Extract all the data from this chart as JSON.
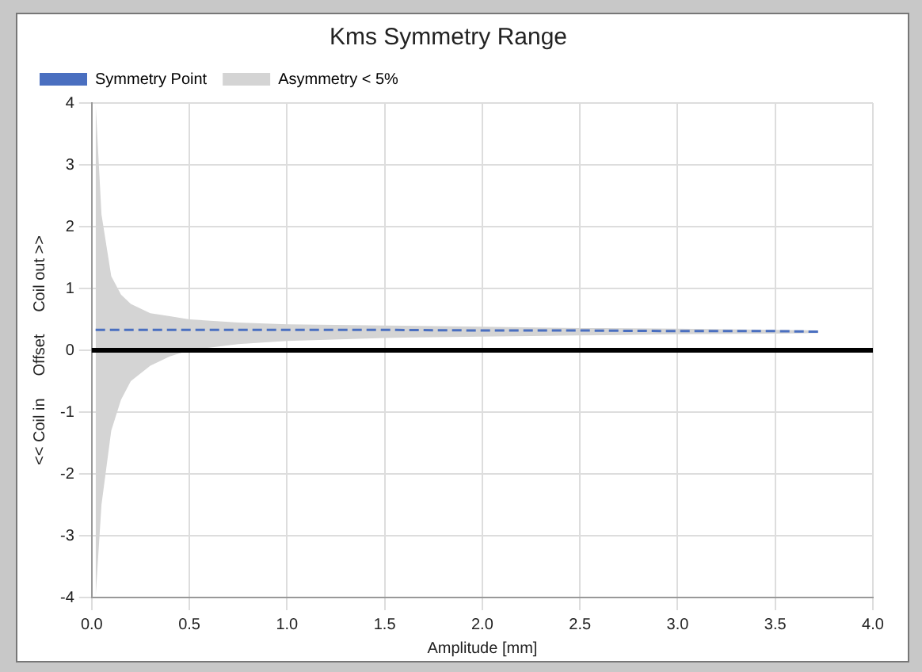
{
  "chart_data": {
    "type": "line",
    "title": "Kms Symmetry Range",
    "xlabel": "Amplitude [mm]",
    "ylabel": "<< Coil in     Offset     Coil out >>",
    "x": [
      0.02,
      0.05,
      0.1,
      0.15,
      0.2,
      0.3,
      0.4,
      0.5,
      0.75,
      1.0,
      1.5,
      2.0,
      2.5,
      3.0,
      3.5,
      3.72
    ],
    "series": [
      {
        "name": "Symmetry Point",
        "type": "line",
        "color": "#4a6fc0",
        "line_style": "dashed",
        "values": [
          0.33,
          0.33,
          0.33,
          0.33,
          0.33,
          0.33,
          0.33,
          0.33,
          0.33,
          0.33,
          0.33,
          0.32,
          0.32,
          0.31,
          0.31,
          0.3
        ]
      },
      {
        "name": "Asymmetry < 5%",
        "type": "area",
        "color": "#d4d4d4",
        "values": [
          null,
          null,
          null,
          null,
          null,
          null,
          null,
          null,
          null,
          null,
          null,
          null,
          null,
          null,
          null,
          null
        ],
        "upper": [
          4,
          2.2,
          1.2,
          0.9,
          0.75,
          0.6,
          0.55,
          0.5,
          0.45,
          0.42,
          0.4,
          0.38,
          0.36,
          0.35,
          0.33,
          0.32
        ],
        "lower": [
          -4,
          -2.5,
          -1.3,
          -0.8,
          -0.5,
          -0.25,
          -0.1,
          0.0,
          0.1,
          0.15,
          0.2,
          0.22,
          0.24,
          0.26,
          0.27,
          0.28
        ]
      }
    ],
    "xlim": [
      0,
      4
    ],
    "xticks": [
      {
        "value": 0,
        "label": "0.0"
      },
      {
        "value": 0.5,
        "label": "0.5"
      },
      {
        "value": 1,
        "label": "1.0"
      },
      {
        "value": 1.5,
        "label": "1.5"
      },
      {
        "value": 2,
        "label": "2.0"
      },
      {
        "value": 2.5,
        "label": "2.5"
      },
      {
        "value": 3,
        "label": "3.0"
      },
      {
        "value": 3.5,
        "label": "3.5"
      },
      {
        "value": 4,
        "label": "4.0"
      }
    ],
    "ylim": [
      -4,
      4
    ],
    "yticks": [
      -4,
      -3,
      -2,
      -1,
      0,
      1,
      2,
      3,
      4
    ],
    "ref_lines": [
      {
        "axis": "y",
        "value": 0,
        "color": "#000000"
      }
    ],
    "grid": true,
    "legend": "top left",
    "marker": "none"
  }
}
